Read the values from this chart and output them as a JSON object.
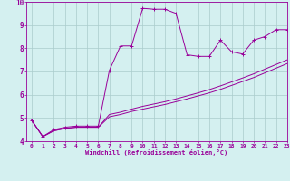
{
  "xlabel": "Windchill (Refroidissement éolien,°C)",
  "x_values": [
    0,
    1,
    2,
    3,
    4,
    5,
    6,
    7,
    8,
    9,
    10,
    11,
    12,
    13,
    14,
    15,
    16,
    17,
    18,
    19,
    20,
    21,
    22,
    23
  ],
  "line1_y": [
    4.9,
    4.2,
    4.5,
    4.6,
    4.65,
    4.65,
    4.65,
    7.05,
    8.1,
    8.1,
    9.72,
    9.68,
    9.68,
    9.5,
    7.72,
    7.65,
    7.65,
    8.35,
    7.85,
    7.75,
    8.35,
    8.5,
    8.8,
    8.8
  ],
  "line2_y": [
    4.9,
    4.2,
    4.45,
    4.55,
    4.6,
    4.6,
    4.6,
    5.15,
    5.25,
    5.38,
    5.5,
    5.6,
    5.7,
    5.82,
    5.95,
    6.08,
    6.22,
    6.38,
    6.55,
    6.72,
    6.9,
    7.1,
    7.3,
    7.5
  ],
  "line3_y": [
    4.9,
    4.2,
    4.45,
    4.55,
    4.6,
    4.6,
    4.6,
    5.05,
    5.15,
    5.28,
    5.38,
    5.48,
    5.58,
    5.7,
    5.82,
    5.95,
    6.08,
    6.23,
    6.4,
    6.57,
    6.74,
    6.94,
    7.14,
    7.34
  ],
  "line_color": "#990099",
  "bg_color": "#d4f0f0",
  "grid_color": "#aacccc",
  "ylim": [
    4,
    10
  ],
  "xlim": [
    -0.5,
    23
  ],
  "yticks": [
    4,
    5,
    6,
    7,
    8,
    9,
    10
  ],
  "xticks": [
    0,
    1,
    2,
    3,
    4,
    5,
    6,
    7,
    8,
    9,
    10,
    11,
    12,
    13,
    14,
    15,
    16,
    17,
    18,
    19,
    20,
    21,
    22,
    23
  ]
}
